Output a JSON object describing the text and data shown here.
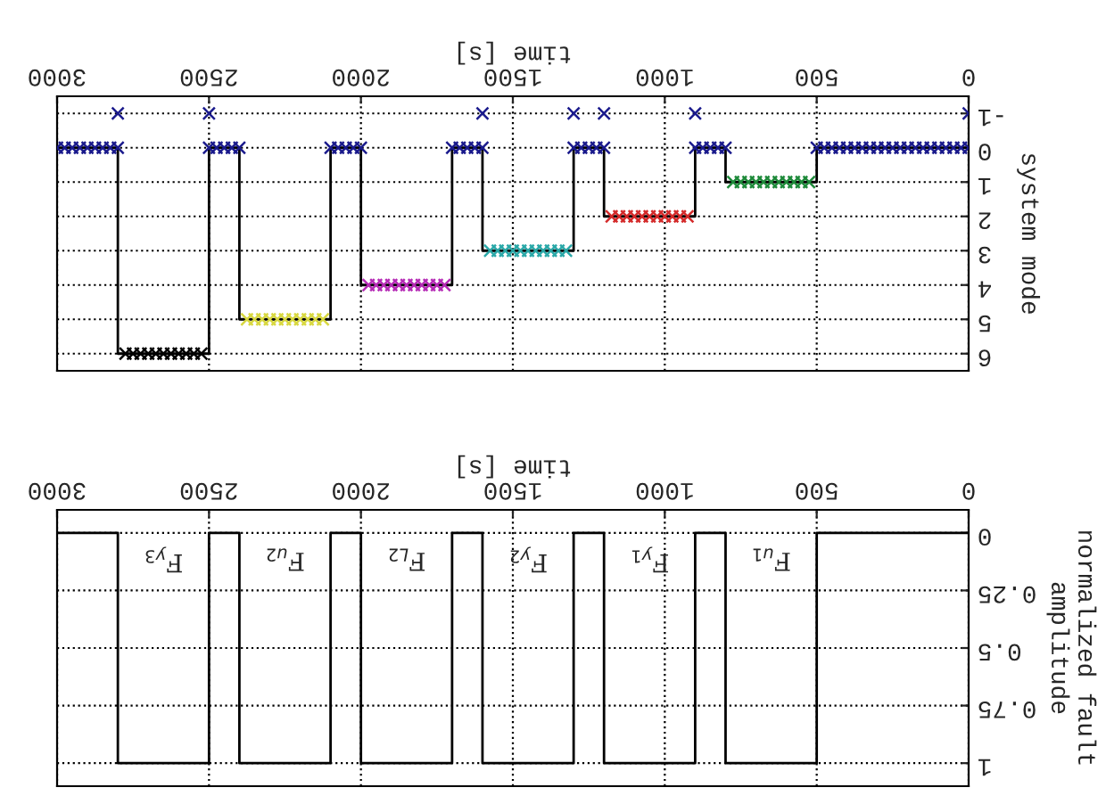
{
  "chart_data": [
    {
      "type": "scatter",
      "xlabel": "time [s]",
      "ylabel": "system mode",
      "xlim": [
        3000,
        0
      ],
      "ylim": [
        6.5,
        -1.5
      ],
      "xticks": [
        0,
        500,
        1000,
        1500,
        2000,
        2500,
        3000
      ],
      "yticks": [
        -1,
        0,
        1,
        2,
        3,
        4,
        5,
        6
      ],
      "grid": true,
      "marker": "cross",
      "series": [
        {
          "type": "step",
          "color": "#000000",
          "marker": "none",
          "x": [
            0,
            500,
            800,
            900,
            1200,
            1300,
            1600,
            1700,
            2000,
            2100,
            2400,
            2500,
            2800,
            3000
          ],
          "values": [
            0,
            1,
            0,
            2,
            0,
            3,
            0,
            4,
            0,
            5,
            0,
            6,
            0,
            0
          ]
        },
        {
          "color": "#1a1a8c",
          "x": [
            0,
            25,
            50,
            75,
            100,
            125,
            150,
            175,
            200,
            225,
            250,
            275,
            300,
            325,
            350,
            375,
            400,
            425,
            450,
            475,
            500,
            800,
            825,
            850,
            875,
            900,
            1200,
            1225,
            1250,
            1275,
            1300,
            1600,
            1625,
            1650,
            1675,
            1700,
            2000,
            2025,
            2050,
            2075,
            2100,
            2400,
            2425,
            2450,
            2475,
            2500,
            2800,
            2825,
            2850,
            2875,
            2900,
            2925,
            2950,
            2975,
            3000
          ],
          "values": [
            0,
            0,
            0,
            0,
            0,
            0,
            0,
            0,
            0,
            0,
            0,
            0,
            0,
            0,
            0,
            0,
            0,
            0,
            0,
            0,
            0,
            0,
            0,
            0,
            0,
            0,
            0,
            0,
            0,
            0,
            0,
            0,
            0,
            0,
            0,
            0,
            0,
            0,
            0,
            0,
            0,
            0,
            0,
            0,
            0,
            0,
            0,
            0,
            0,
            0,
            0,
            0,
            0,
            0,
            0
          ]
        },
        {
          "color": "#1e8a3a",
          "x": [
            525,
            550,
            575,
            600,
            625,
            650,
            675,
            700,
            725,
            750,
            775
          ],
          "values": [
            1,
            1,
            1,
            1,
            1,
            1,
            1,
            1,
            1,
            1,
            1
          ]
        },
        {
          "color": "#d42a2a",
          "x": [
            925,
            950,
            975,
            1000,
            1025,
            1050,
            1075,
            1100,
            1125,
            1150,
            1175
          ],
          "values": [
            2,
            2,
            2,
            2,
            2,
            2,
            2,
            2,
            2,
            2,
            2
          ]
        },
        {
          "color": "#2aa8a8",
          "x": [
            1325,
            1350,
            1375,
            1400,
            1425,
            1450,
            1475,
            1500,
            1525,
            1550,
            1575
          ],
          "values": [
            3,
            3,
            3,
            3,
            3,
            3,
            3,
            3,
            3,
            3,
            3
          ]
        },
        {
          "color": "#b52ab5",
          "x": [
            1725,
            1750,
            1775,
            1800,
            1825,
            1850,
            1875,
            1900,
            1925,
            1950,
            1975
          ],
          "values": [
            4,
            4,
            4,
            4,
            4,
            4,
            4,
            4,
            4,
            4,
            4
          ]
        },
        {
          "color": "#d8d840",
          "x": [
            2125,
            2150,
            2175,
            2200,
            2225,
            2250,
            2275,
            2300,
            2325,
            2350,
            2375
          ],
          "values": [
            5,
            5,
            5,
            5,
            5,
            5,
            5,
            5,
            5,
            5,
            5
          ]
        },
        {
          "color": "#000000",
          "x": [
            2525,
            2550,
            2575,
            2600,
            2625,
            2650,
            2675,
            2700,
            2725,
            2750,
            2775
          ],
          "values": [
            6,
            6,
            6,
            6,
            6,
            6,
            6,
            6,
            6,
            6,
            6
          ]
        },
        {
          "color": "#1a1a8c",
          "x": [
            0,
            900,
            1200,
            1300,
            1600,
            2500,
            2800
          ],
          "values": [
            -1,
            -1,
            -1,
            -1,
            -1,
            -1,
            -1
          ]
        }
      ]
    },
    {
      "type": "step",
      "xlabel": "time [s]",
      "ylabel": "normalized fault\namplitude",
      "xlim": [
        3000,
        0
      ],
      "ylim": [
        1.1,
        -0.1
      ],
      "xticks": [
        0,
        500,
        1000,
        1500,
        2000,
        2500,
        3000
      ],
      "yticks": [
        0,
        0.25,
        0.5,
        0.75,
        1
      ],
      "grid": true,
      "series": [
        {
          "color": "#000000",
          "x": [
            0,
            500,
            800,
            900,
            1200,
            1300,
            1600,
            1700,
            2000,
            2100,
            2400,
            2500,
            2800,
            3000
          ],
          "values": [
            0,
            1,
            0,
            1,
            0,
            1,
            0,
            1,
            0,
            1,
            0,
            1,
            0,
            0
          ]
        }
      ],
      "annotations": [
        "F$_{u1}$",
        "F$_{y1}$",
        "F$_{y2}$",
        "F$_{L2}$",
        "F$_{u2}$",
        "F$_{y3}$"
      ]
    }
  ]
}
